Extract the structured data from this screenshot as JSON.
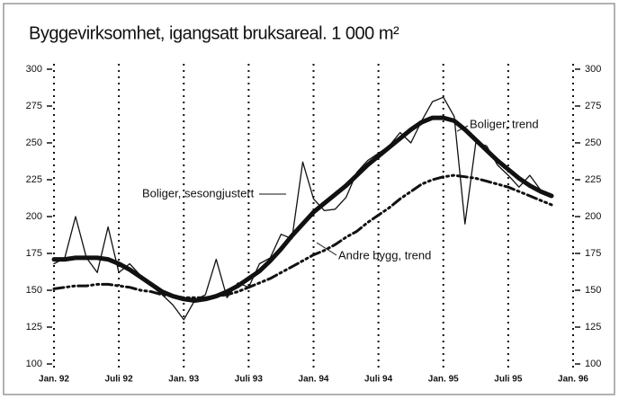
{
  "chart_data": {
    "type": "line",
    "title": "Byggevirksomhet, igangsatt bruksareal. 1 000 m²",
    "x": [
      0,
      1,
      2,
      3,
      4,
      5,
      6,
      7,
      8,
      9,
      10,
      11,
      12,
      13,
      14,
      15,
      16,
      17,
      18,
      19,
      20,
      21,
      22,
      23,
      24,
      25,
      26,
      27,
      28,
      29,
      30,
      31,
      32,
      33,
      34,
      35,
      36,
      37,
      38,
      39,
      40,
      41,
      42,
      43,
      44,
      45,
      46
    ],
    "xlim": [
      0,
      48
    ],
    "xticks": [
      {
        "value": 0,
        "label": "Jan. 92"
      },
      {
        "value": 6,
        "label": "Juli 92"
      },
      {
        "value": 12,
        "label": "Jan. 93"
      },
      {
        "value": 18,
        "label": "Juli 93"
      },
      {
        "value": 24,
        "label": "Jan. 94"
      },
      {
        "value": 30,
        "label": "Juli 94"
      },
      {
        "value": 36,
        "label": "Jan. 95"
      },
      {
        "value": 42,
        "label": "Juli 95"
      },
      {
        "value": 48,
        "label": "Jan. 96"
      }
    ],
    "ylim": [
      100,
      300
    ],
    "yticks": [
      100,
      125,
      150,
      175,
      200,
      225,
      250,
      275,
      300
    ],
    "y2lim": [
      100,
      300
    ],
    "y2ticks": [
      100,
      125,
      150,
      175,
      200,
      225,
      250,
      275,
      300
    ],
    "grid": true,
    "series": [
      {
        "name": "Boliger, sesongjustert",
        "color": "#111111",
        "values": [
          168,
          172,
          200,
          172,
          162,
          193,
          162,
          168,
          160,
          153,
          147,
          140,
          130,
          143,
          147,
          171,
          145,
          155,
          152,
          168,
          172,
          188,
          185,
          237,
          212,
          204,
          205,
          213,
          230,
          238,
          243,
          248,
          257,
          250,
          265,
          278,
          281,
          268,
          195,
          250,
          248,
          235,
          228,
          220,
          228,
          218,
          215
        ]
      },
      {
        "name": "Boliger, trend",
        "color": "#111111",
        "values": [
          171,
          171,
          172,
          172,
          172,
          171,
          168,
          164,
          159,
          154,
          149,
          146,
          144,
          143,
          144,
          146,
          149,
          153,
          158,
          163,
          170,
          178,
          187,
          195,
          203,
          209,
          215,
          221,
          228,
          235,
          241,
          247,
          253,
          259,
          264,
          267,
          267,
          265,
          259,
          252,
          245,
          238,
          232,
          226,
          221,
          217,
          214
        ]
      },
      {
        "name": "Andre bygg, trend",
        "color": "#111111",
        "values": [
          151,
          152,
          153,
          153,
          154,
          154,
          153,
          152,
          150,
          149,
          147,
          146,
          145,
          145,
          145,
          146,
          147,
          149,
          152,
          155,
          158,
          162,
          166,
          170,
          174,
          177,
          181,
          186,
          190,
          196,
          201,
          206,
          212,
          217,
          222,
          225,
          227,
          228,
          227,
          226,
          224,
          222,
          220,
          217,
          214,
          211,
          208
        ]
      }
    ]
  }
}
